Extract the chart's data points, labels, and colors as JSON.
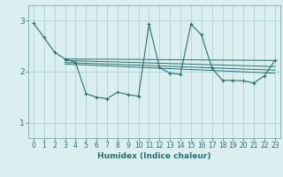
{
  "bg_color": "#dbeef0",
  "grid_color": "#b0d8dc",
  "line_color": "#2a7070",
  "xlabel": "Humidex (Indice chaleur)",
  "xlim": [
    -0.5,
    23.5
  ],
  "ylim": [
    0.7,
    3.3
  ],
  "yticks": [
    1,
    2,
    3
  ],
  "xticks": [
    0,
    1,
    2,
    3,
    4,
    5,
    6,
    7,
    8,
    9,
    10,
    11,
    12,
    13,
    14,
    15,
    16,
    17,
    18,
    19,
    20,
    21,
    22,
    23
  ],
  "series": [
    [
      0,
      2.95
    ],
    [
      1,
      2.67
    ],
    [
      2,
      2.38
    ],
    [
      3,
      2.25
    ],
    [
      4,
      2.18
    ],
    [
      5,
      1.57
    ],
    [
      6,
      1.5
    ],
    [
      7,
      1.47
    ],
    [
      8,
      1.6
    ],
    [
      9,
      1.55
    ],
    [
      10,
      1.52
    ],
    [
      11,
      2.93
    ],
    [
      12,
      2.08
    ],
    [
      13,
      1.97
    ],
    [
      14,
      1.95
    ],
    [
      15,
      2.93
    ],
    [
      16,
      2.72
    ],
    [
      17,
      2.07
    ],
    [
      18,
      1.83
    ],
    [
      19,
      1.83
    ],
    [
      20,
      1.82
    ],
    [
      21,
      1.78
    ],
    [
      22,
      1.92
    ],
    [
      23,
      2.22
    ]
  ],
  "trend_lines": [
    [
      [
        3,
        2.25
      ],
      [
        23,
        2.22
      ]
    ],
    [
      [
        3,
        2.22
      ],
      [
        23,
        2.1
      ]
    ],
    [
      [
        3,
        2.18
      ],
      [
        23,
        2.03
      ]
    ],
    [
      [
        3,
        2.15
      ],
      [
        23,
        1.97
      ]
    ]
  ]
}
